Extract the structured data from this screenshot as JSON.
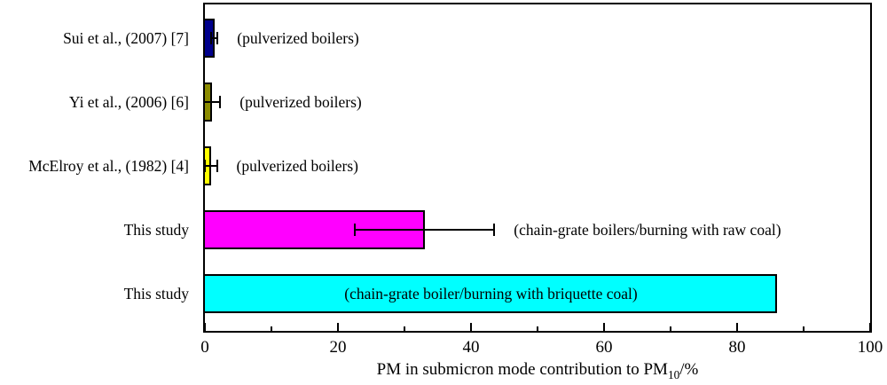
{
  "figure": {
    "background": "#ffffff",
    "frame_color": "#000000",
    "text_color": "#000000"
  },
  "xlabel": {
    "prefix": "PM in submicron mode contribution to PM",
    "sub": "10",
    "suffix": "/%"
  },
  "chart_data": {
    "type": "bar",
    "orientation": "horizontal",
    "xlabel": "PM in submicron mode contribution to PM10/%",
    "xlim": [
      0,
      100
    ],
    "x_major_ticks": [
      0,
      20,
      40,
      60,
      80,
      100
    ],
    "x_minor_ticks": [
      10,
      30,
      50,
      70,
      90
    ],
    "grid": false,
    "legend": false,
    "rows": [
      {
        "label": "Sui et al., (2007) [7]",
        "value": 1.4,
        "error": 0.5,
        "color": "#00008B",
        "annotation": "(pulverized boilers)",
        "annotation_position": "outside"
      },
      {
        "label": "Yi et al., (2006) [6]",
        "value": 1.0,
        "error": 1.3,
        "color": "#8B8B00",
        "annotation": "(pulverized boilers)",
        "annotation_position": "outside"
      },
      {
        "label": "McElroy et al., (1982) [4]",
        "value": 0.9,
        "error": 0.9,
        "color": "#FFFF00",
        "annotation": "(pulverized boilers)",
        "annotation_position": "outside"
      },
      {
        "label": "This study",
        "value": 33,
        "error": 10.5,
        "color": "#FF00FF",
        "annotation": "(chain-grate boilers/burning with raw coal)",
        "annotation_position": "outside"
      },
      {
        "label": "This study",
        "value": 86,
        "error": null,
        "color": "#00FFFF",
        "annotation": "(chain-grate boiler/burning with briquette coal)",
        "annotation_position": "inside"
      }
    ]
  }
}
